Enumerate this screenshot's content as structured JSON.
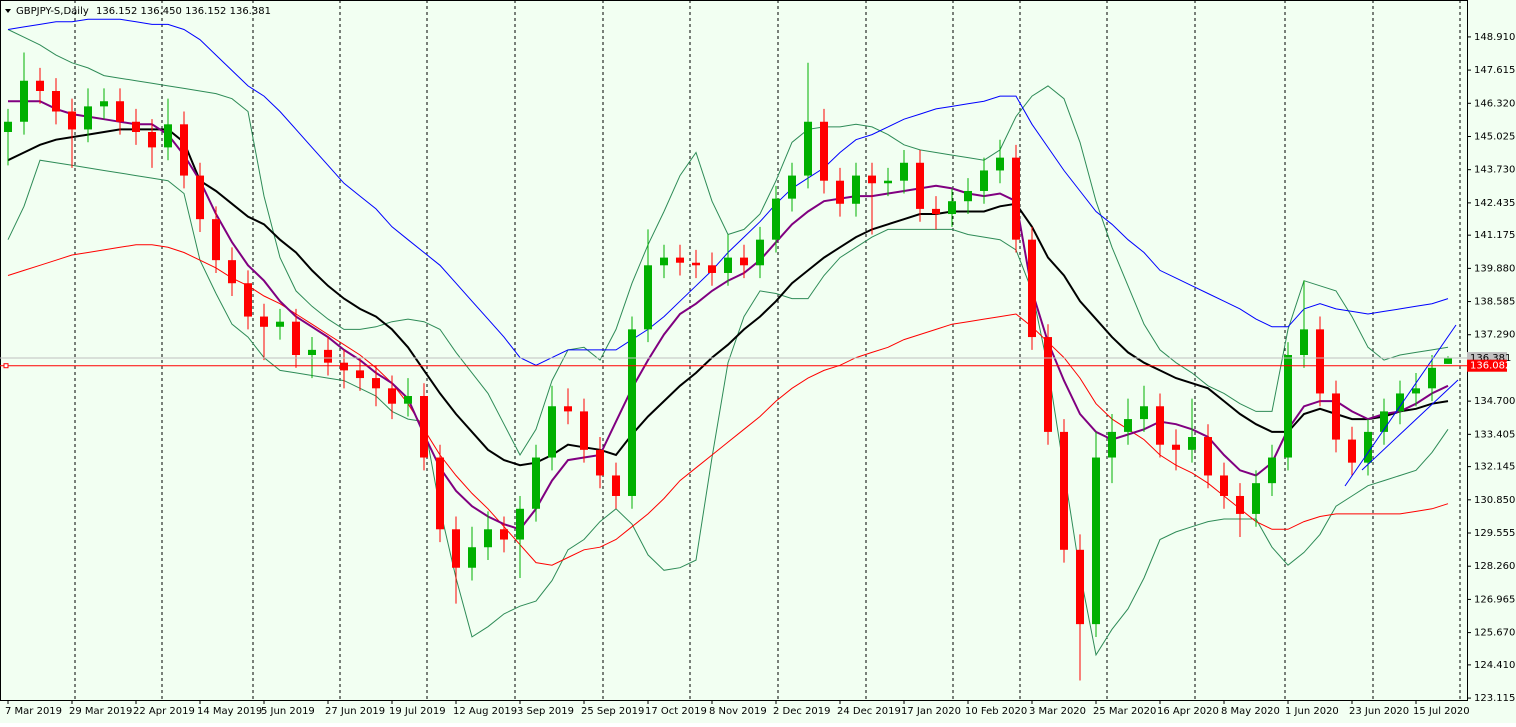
{
  "chart_data": {
    "type": "candlestick",
    "title": "GBPJPY-S,Daily",
    "ohlc_text": "136.152 136.450 136.152 136.381",
    "up_color": "#00b000",
    "down_color": "#ff0000",
    "categories": [
      "7 Mar 2019",
      null,
      null,
      null,
      "29 Mar 2019",
      null,
      null,
      null,
      "22 Apr 2019",
      null,
      null,
      null,
      "14 May 2019",
      null,
      null,
      null,
      "5 Jun 2019",
      null,
      null,
      null,
      "27 Jun 2019",
      null,
      null,
      null,
      "19 Jul 2019",
      null,
      null,
      null,
      "12 Aug 2019",
      null,
      null,
      null,
      "3 Sep 2019",
      null,
      null,
      null,
      "25 Sep 2019",
      null,
      null,
      null,
      "17 Oct 2019",
      null,
      null,
      null,
      "8 Nov 2019",
      null,
      null,
      null,
      "2 Dec 2019",
      null,
      null,
      null,
      "24 Dec 2019",
      null,
      null,
      null,
      "17 Jan 2020",
      null,
      null,
      null,
      "10 Feb 2020",
      null,
      null,
      null,
      "3 Mar 2020",
      null,
      null,
      null,
      "25 Mar 2020",
      null,
      null,
      null,
      "16 Apr 2020",
      null,
      null,
      null,
      "8 May 2020",
      null,
      null,
      null,
      "1 Jun 2020",
      null,
      null,
      null,
      "23 Jun 2020",
      null,
      null,
      null,
      "15 Jul 2020",
      null,
      null
    ],
    "open": [
      145.2,
      145.6,
      147.2,
      146.8,
      146.0,
      145.3,
      146.2,
      146.4,
      145.6,
      145.2,
      144.6,
      145.5,
      143.5,
      141.8,
      140.2,
      139.3,
      138.0,
      137.6,
      137.8,
      136.5,
      136.7,
      136.2,
      135.9,
      135.6,
      135.2,
      134.6,
      134.9,
      132.5,
      129.7,
      128.2,
      129.0,
      129.7,
      129.3,
      130.5,
      132.5,
      134.5,
      134.3,
      132.8,
      131.8,
      131.0,
      137.5,
      140.0,
      140.3,
      140.1,
      140.0,
      139.7,
      140.3,
      140.0,
      141.0,
      142.6,
      143.5,
      145.6,
      143.3,
      142.4,
      143.5,
      143.2,
      143.3,
      144.0,
      142.2,
      142.0,
      142.5,
      142.9,
      143.7,
      144.2,
      141.0,
      137.2,
      133.5,
      128.9,
      126.0,
      132.5,
      133.5,
      134.0,
      134.5,
      133.0,
      132.8,
      133.3,
      131.8,
      131.0,
      130.3,
      131.5,
      132.5,
      136.5,
      137.5,
      135.0,
      133.2,
      132.3,
      133.5,
      134.3,
      135.0,
      135.2,
      136.152
    ],
    "high": [
      146.1,
      148.3,
      147.7,
      147.3,
      146.5,
      146.9,
      146.9,
      146.9,
      146.1,
      145.7,
      146.5,
      146.0,
      144.0,
      142.3,
      140.7,
      139.8,
      138.5,
      138.3,
      138.3,
      137.2,
      137.2,
      136.7,
      136.4,
      136.1,
      135.7,
      135.6,
      135.4,
      133.0,
      130.2,
      129.8,
      130.4,
      130.2,
      131.0,
      133.0,
      135.3,
      135.2,
      134.8,
      133.3,
      132.3,
      138.0,
      141.4,
      140.8,
      140.8,
      140.6,
      140.5,
      141.2,
      140.8,
      141.5,
      143.1,
      144.0,
      147.9,
      146.1,
      143.8,
      144.0,
      144.0,
      143.8,
      144.5,
      144.5,
      142.7,
      143.0,
      143.4,
      144.2,
      144.9,
      144.7,
      141.5,
      137.7,
      134.0,
      129.5,
      133.5,
      134.2,
      134.8,
      135.3,
      135.0,
      133.6,
      134.8,
      133.8,
      132.3,
      131.5,
      132.0,
      133.0,
      137.0,
      139.4,
      138.0,
      135.5,
      133.7,
      134.0,
      134.8,
      135.5,
      135.8,
      136.5,
      136.45
    ],
    "low": [
      143.9,
      145.1,
      146.3,
      145.5,
      143.8,
      144.8,
      145.7,
      145.1,
      144.7,
      143.8,
      144.1,
      143.0,
      141.3,
      139.7,
      138.8,
      137.5,
      136.3,
      137.1,
      136.0,
      135.6,
      135.7,
      135.2,
      135.1,
      134.5,
      134.0,
      134.1,
      132.0,
      129.2,
      126.8,
      127.7,
      128.5,
      128.8,
      127.8,
      130.0,
      132.0,
      133.8,
      132.3,
      131.3,
      130.5,
      130.5,
      137.0,
      139.5,
      139.6,
      139.5,
      139.2,
      139.2,
      139.5,
      139.5,
      140.5,
      142.1,
      143.0,
      142.8,
      141.9,
      141.9,
      141.2,
      142.7,
      142.8,
      141.7,
      141.4,
      141.5,
      142.0,
      142.4,
      143.2,
      140.5,
      136.7,
      133.0,
      128.4,
      123.8,
      125.5,
      131.5,
      133.0,
      133.5,
      132.5,
      132.0,
      132.3,
      131.3,
      130.5,
      129.4,
      129.8,
      131.0,
      132.0,
      136.0,
      134.5,
      132.7,
      131.8,
      131.8,
      133.0,
      133.8,
      134.5,
      134.7,
      136.152
    ],
    "close": [
      145.6,
      147.2,
      146.8,
      146.0,
      145.3,
      146.2,
      146.4,
      145.6,
      145.2,
      144.6,
      145.5,
      143.5,
      141.8,
      140.2,
      139.3,
      138.0,
      137.6,
      137.8,
      136.5,
      136.7,
      136.2,
      135.9,
      135.6,
      135.2,
      134.6,
      134.9,
      132.5,
      129.7,
      128.2,
      129.0,
      129.7,
      129.3,
      130.5,
      132.5,
      134.5,
      134.3,
      132.8,
      131.8,
      131.0,
      137.5,
      140.0,
      140.3,
      140.1,
      140.0,
      139.7,
      140.3,
      140.0,
      141.0,
      142.6,
      143.5,
      145.6,
      143.3,
      142.4,
      143.5,
      143.2,
      143.3,
      144.0,
      142.2,
      142.0,
      142.5,
      142.9,
      143.7,
      144.2,
      141.0,
      137.2,
      133.5,
      128.9,
      126.0,
      132.5,
      133.5,
      134.0,
      134.5,
      133.0,
      132.8,
      133.3,
      131.8,
      131.0,
      130.3,
      131.5,
      132.5,
      136.5,
      137.5,
      135.0,
      133.2,
      132.3,
      133.5,
      134.3,
      135.0,
      135.2,
      136.0,
      136.381
    ],
    "lines": [
      {
        "color": "#2e8b57",
        "width": 1,
        "values": [
          149.2,
          148.9,
          148.6,
          148.2,
          147.9,
          147.7,
          147.4,
          147.3,
          147.2,
          147.1,
          147.0,
          146.9,
          146.8,
          146.7,
          146.5,
          146.0,
          142.7,
          140.3,
          139.0,
          138.4,
          137.9,
          137.5,
          137.5,
          137.6,
          137.8,
          137.9,
          137.8,
          137.5,
          136.6,
          135.8,
          135.0,
          133.8,
          132.6,
          133.6,
          135.5,
          136.7,
          136.8,
          136.3,
          137.5,
          139.3,
          140.8,
          142.1,
          143.5,
          144.4,
          142.5,
          141.2,
          141.4,
          142.0,
          143.3,
          144.8,
          145.3,
          145.4,
          145.4,
          145.5,
          145.4,
          145.1,
          144.7,
          144.5,
          144.4,
          144.3,
          144.2,
          144.1,
          144.5,
          145.8,
          146.6,
          147.0,
          146.5,
          144.8,
          142.5,
          140.7,
          139.2,
          137.7,
          136.7,
          136.2,
          135.8,
          135.3,
          135.0,
          134.6,
          134.3,
          134.3,
          137.5,
          139.4,
          139.2,
          139.0,
          138.0,
          136.8,
          136.3,
          136.5,
          136.6,
          136.7,
          136.8
        ]
      },
      {
        "color": "#2e8b57",
        "width": 1,
        "values": [
          141.0,
          142.3,
          144.1,
          144.0,
          143.9,
          143.8,
          143.7,
          143.6,
          143.5,
          143.4,
          143.3,
          142.8,
          140.2,
          138.9,
          137.7,
          137.2,
          136.4,
          135.9,
          135.8,
          135.7,
          135.6,
          135.5,
          135.2,
          134.9,
          134.3,
          134.0,
          133.9,
          130.5,
          127.8,
          125.5,
          125.9,
          126.4,
          126.7,
          126.9,
          127.7,
          128.9,
          129.3,
          130.0,
          130.5,
          129.9,
          128.7,
          128.1,
          128.2,
          128.5,
          132.5,
          136.2,
          138.0,
          139.0,
          138.9,
          138.7,
          138.7,
          139.6,
          140.3,
          140.7,
          141.1,
          141.4,
          141.4,
          141.4,
          141.4,
          141.4,
          141.2,
          141.1,
          141.0,
          140.6,
          139.0,
          136.0,
          132.0,
          128.0,
          124.8,
          125.8,
          126.6,
          127.8,
          129.3,
          129.6,
          129.8,
          130.0,
          130.1,
          130.1,
          130.1,
          129.0,
          128.3,
          128.8,
          129.5,
          130.6,
          131.0,
          131.4,
          131.6,
          131.8,
          132.0,
          132.7,
          133.6
        ]
      },
      {
        "color": "#0000ff",
        "width": 1,
        "values": [
          149.2,
          149.3,
          149.4,
          149.5,
          149.5,
          149.6,
          149.6,
          149.6,
          149.5,
          149.4,
          149.4,
          149.2,
          148.8,
          148.2,
          147.6,
          147.0,
          146.6,
          146.0,
          145.3,
          144.6,
          143.9,
          143.2,
          142.7,
          142.2,
          141.5,
          141.0,
          140.5,
          140.0,
          139.3,
          138.6,
          137.9,
          137.2,
          136.4,
          136.1,
          136.4,
          136.7,
          136.7,
          136.7,
          136.7,
          137.1,
          137.5,
          138.0,
          138.6,
          139.2,
          139.8,
          140.5,
          141.1,
          141.7,
          142.4,
          143.0,
          143.4,
          143.8,
          144.4,
          144.9,
          145.1,
          145.4,
          145.7,
          145.9,
          146.1,
          146.2,
          146.3,
          146.4,
          146.6,
          146.6,
          145.5,
          144.6,
          143.7,
          142.9,
          142.1,
          141.6,
          141.0,
          140.5,
          139.8,
          139.5,
          139.2,
          138.9,
          138.6,
          138.3,
          137.9,
          137.6,
          137.6,
          138.3,
          138.5,
          138.3,
          138.2,
          138.1,
          138.2,
          138.3,
          138.4,
          138.5,
          138.7
        ]
      },
      {
        "color": "#ff0000",
        "width": 1,
        "values": [
          139.6,
          139.8,
          140.0,
          140.2,
          140.4,
          140.5,
          140.6,
          140.7,
          140.8,
          140.8,
          140.7,
          140.5,
          140.2,
          139.9,
          139.5,
          139.2,
          138.8,
          138.5,
          138.1,
          137.7,
          137.3,
          136.9,
          136.5,
          136.0,
          135.4,
          134.6,
          133.6,
          132.6,
          131.8,
          131.1,
          130.5,
          129.8,
          129.1,
          128.4,
          128.3,
          128.6,
          128.9,
          129.0,
          129.3,
          129.8,
          130.3,
          130.9,
          131.6,
          132.1,
          132.6,
          133.1,
          133.6,
          134.1,
          134.7,
          135.2,
          135.6,
          135.9,
          136.1,
          136.4,
          136.6,
          136.8,
          137.1,
          137.3,
          137.5,
          137.7,
          137.8,
          137.9,
          138.0,
          138.1,
          137.6,
          137.0,
          136.4,
          135.6,
          134.6,
          134.0,
          133.6,
          133.2,
          132.6,
          132.2,
          131.9,
          131.5,
          131.0,
          130.5,
          130.0,
          129.7,
          129.7,
          130.0,
          130.2,
          130.3,
          130.3,
          130.3,
          130.3,
          130.3,
          130.4,
          130.5,
          130.7
        ]
      },
      {
        "color": "#000000",
        "width": 2,
        "values": [
          144.1,
          144.4,
          144.7,
          144.9,
          145.0,
          145.1,
          145.2,
          145.3,
          145.3,
          145.3,
          145.3,
          144.8,
          143.3,
          142.9,
          142.4,
          141.9,
          141.6,
          141.0,
          140.5,
          139.8,
          139.2,
          138.7,
          138.3,
          138.0,
          137.5,
          136.8,
          135.9,
          135.0,
          134.2,
          133.5,
          132.8,
          132.4,
          132.2,
          132.3,
          132.6,
          133.0,
          132.9,
          132.8,
          132.6,
          133.4,
          134.1,
          134.7,
          135.3,
          135.8,
          136.4,
          136.9,
          137.5,
          138.0,
          138.6,
          139.3,
          139.8,
          140.3,
          140.7,
          141.1,
          141.4,
          141.6,
          141.8,
          142.0,
          142.0,
          142.1,
          142.1,
          142.1,
          142.3,
          142.4,
          141.5,
          140.3,
          139.6,
          138.6,
          137.9,
          137.2,
          136.6,
          136.2,
          135.9,
          135.6,
          135.4,
          135.2,
          134.7,
          134.2,
          133.8,
          133.5,
          133.5,
          134.2,
          134.4,
          134.2,
          134.0,
          134.0,
          134.1,
          134.3,
          134.4,
          134.6,
          134.7
        ]
      },
      {
        "color": "#800080",
        "width": 2,
        "values": [
          146.4,
          146.4,
          146.4,
          146.1,
          145.9,
          145.8,
          145.7,
          145.6,
          145.5,
          145.5,
          145.1,
          144.3,
          143.3,
          142.0,
          140.9,
          140.0,
          139.4,
          138.6,
          138.0,
          137.6,
          137.2,
          136.7,
          136.3,
          135.8,
          135.4,
          134.8,
          133.4,
          132.1,
          131.2,
          130.6,
          130.2,
          129.9,
          129.7,
          130.5,
          131.6,
          132.4,
          132.5,
          132.6,
          133.9,
          135.2,
          136.3,
          137.3,
          138.1,
          138.5,
          139.0,
          139.4,
          139.7,
          140.2,
          140.9,
          141.6,
          142.1,
          142.5,
          142.6,
          142.7,
          142.7,
          142.8,
          142.9,
          143.0,
          143.1,
          143.0,
          142.8,
          142.7,
          142.8,
          142.5,
          139.0,
          137.0,
          135.5,
          134.2,
          133.5,
          133.2,
          133.4,
          133.6,
          133.9,
          133.8,
          133.6,
          133.3,
          132.6,
          132.0,
          131.8,
          132.3,
          133.6,
          134.5,
          134.7,
          134.7,
          134.3,
          134.0,
          134.2,
          134.3,
          134.6,
          135.0,
          135.3
        ]
      }
    ],
    "bid_line": 136.381,
    "bid_color": "#c0c0c0",
    "level_line": 136.082,
    "level_color": "#ff0000",
    "ylim": [
      123.04,
      150.35
    ],
    "yticks": [
      {
        "value": 148.91,
        "label": "148.910"
      },
      147.615,
      {
        "value": 146.32,
        "label": "146.320"
      },
      145.025,
      {
        "value": 143.73,
        "label": "143.730"
      },
      142.435,
      141.175,
      {
        "value": 139.88,
        "label": "139.880"
      },
      138.585,
      {
        "value": 137.29,
        "label": "137.290"
      },
      {
        "value": 134.7,
        "label": "134.700"
      },
      133.405,
      132.145,
      {
        "value": 130.85,
        "label": "130.850"
      },
      129.555,
      {
        "value": 128.26,
        "label": "128.260"
      },
      126.965,
      {
        "value": 125.67,
        "label": "125.670"
      },
      {
        "value": 124.41,
        "label": "124.410"
      },
      123.115
    ]
  }
}
